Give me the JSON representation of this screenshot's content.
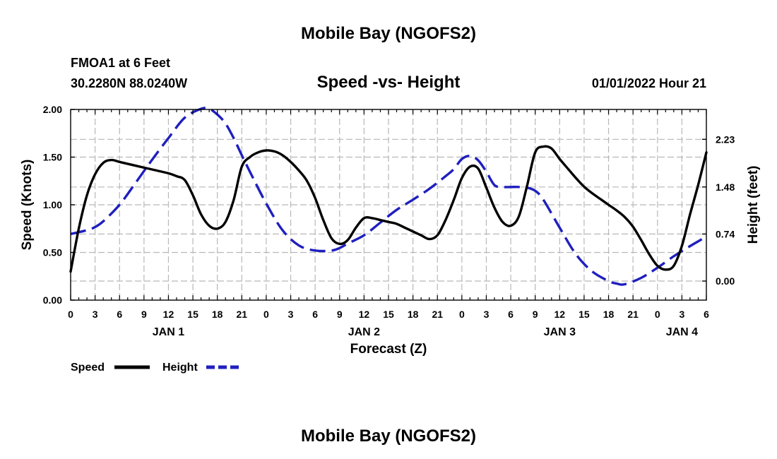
{
  "chart_data": {
    "type": "line",
    "title": "Mobile Bay (NGOFS2)",
    "subtitle": "Speed -vs- Height",
    "station": "FMOA1 at 6 Feet",
    "location": "30.2280N  88.0240W",
    "issued": "01/01/2022 Hour 21",
    "xlabel": "Forecast (Z)",
    "ylabel": "Speed (Knots)",
    "y2label": "Height (feet)",
    "xlim": [
      0,
      78
    ],
    "ylim": [
      0,
      2.0
    ],
    "y2lim": [
      -0.3,
      2.7
    ],
    "yticks": [
      "0.00",
      "0.50",
      "1.00",
      "1.50",
      "2.00"
    ],
    "y2ticks": [
      "0.00",
      "0.74",
      "1.48",
      "2.23"
    ],
    "xtick_labels": [
      "0",
      "3",
      "6",
      "9",
      "12",
      "15",
      "18",
      "21",
      "0",
      "3",
      "6",
      "9",
      "12",
      "15",
      "18",
      "21",
      "0",
      "3",
      "6",
      "9",
      "12",
      "15",
      "18",
      "21",
      "0",
      "3",
      "6"
    ],
    "day_labels": [
      {
        "x": 12,
        "label": "JAN 1"
      },
      {
        "x": 36,
        "label": "JAN 2"
      },
      {
        "x": 60,
        "label": "JAN 3"
      },
      {
        "x": 75,
        "label": "JAN 4"
      }
    ],
    "grid": true,
    "series": [
      {
        "name": "Speed",
        "axis": "left",
        "color": "#000000",
        "dash": "solid",
        "x": [
          0,
          1,
          2,
          3,
          4,
          5,
          6,
          8,
          10,
          12,
          13,
          14,
          15,
          16,
          17,
          18,
          19,
          20,
          21,
          22,
          23,
          24,
          25,
          26,
          27,
          28,
          29,
          30,
          31,
          32,
          33,
          34,
          35,
          36,
          37,
          38,
          39,
          40,
          41,
          42,
          43,
          44,
          45,
          46,
          47,
          48,
          49,
          50,
          51,
          52,
          53,
          54,
          55,
          56,
          57,
          58,
          59,
          60,
          61,
          62,
          63,
          64,
          65,
          66,
          67,
          68,
          69,
          70,
          71,
          72,
          73,
          74,
          75,
          76,
          77,
          78
        ],
        "values": [
          0.3,
          0.75,
          1.1,
          1.32,
          1.44,
          1.47,
          1.45,
          1.41,
          1.37,
          1.33,
          1.3,
          1.26,
          1.1,
          0.9,
          0.78,
          0.75,
          0.82,
          1.05,
          1.4,
          1.5,
          1.55,
          1.57,
          1.56,
          1.52,
          1.45,
          1.36,
          1.25,
          1.07,
          0.84,
          0.65,
          0.59,
          0.63,
          0.76,
          0.86,
          0.86,
          0.84,
          0.82,
          0.8,
          0.76,
          0.72,
          0.68,
          0.64,
          0.68,
          0.84,
          1.05,
          1.28,
          1.4,
          1.38,
          1.18,
          0.97,
          0.82,
          0.78,
          0.88,
          1.2,
          1.55,
          1.61,
          1.59,
          1.48,
          1.38,
          1.28,
          1.19,
          1.12,
          1.06,
          1.0,
          0.94,
          0.87,
          0.77,
          0.63,
          0.48,
          0.36,
          0.32,
          0.36,
          0.57,
          0.9,
          1.21,
          1.55
        ]
      },
      {
        "name": "Height",
        "axis": "right",
        "color": "#1f1fbf",
        "dash": "dashed",
        "x": [
          0,
          2,
          3,
          4,
          6,
          8,
          10,
          12,
          14,
          16,
          17,
          18,
          19,
          20,
          21,
          22,
          24,
          26,
          28,
          30,
          32,
          33,
          34,
          36,
          38,
          40,
          42,
          44,
          46,
          47,
          48,
          49,
          50,
          51,
          52,
          53,
          54,
          55,
          56,
          57,
          58,
          60,
          62,
          64,
          66,
          67,
          68,
          70,
          72,
          74,
          76,
          78
        ],
        "values": [
          0.74,
          0.8,
          0.85,
          0.94,
          1.2,
          1.55,
          1.91,
          2.25,
          2.57,
          2.71,
          2.71,
          2.62,
          2.48,
          2.25,
          1.98,
          1.72,
          1.22,
          0.8,
          0.56,
          0.48,
          0.48,
          0.52,
          0.59,
          0.72,
          0.92,
          1.12,
          1.28,
          1.45,
          1.65,
          1.76,
          1.92,
          1.97,
          1.9,
          1.72,
          1.51,
          1.48,
          1.48,
          1.48,
          1.47,
          1.42,
          1.28,
          0.84,
          0.42,
          0.15,
          0.0,
          -0.04,
          -0.05,
          0.05,
          0.21,
          0.39,
          0.55,
          0.7
        ]
      }
    ],
    "legend": [
      {
        "label": "Speed",
        "color": "#000000",
        "dash": "solid"
      },
      {
        "label": "Height",
        "color": "#1f1fbf",
        "dash": "dashed"
      }
    ],
    "legend_position": "bottom-left",
    "footer_title": "Mobile Bay (NGOFS2)"
  }
}
